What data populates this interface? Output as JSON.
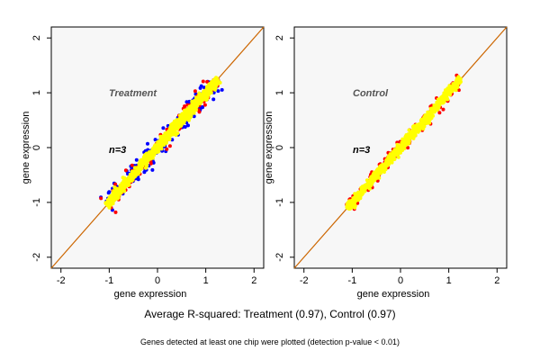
{
  "chart_data": [
    {
      "type": "scatter",
      "panel_label": "Treatment",
      "annotation": "n=3",
      "xlabel": "gene expression",
      "ylabel": "gene expression",
      "xlim": [
        -2.2,
        2.2
      ],
      "ylim": [
        -2.2,
        2.2
      ],
      "xticks": [
        -2,
        -1,
        0,
        1,
        2
      ],
      "yticks": [
        -2,
        -1,
        0,
        1,
        2
      ],
      "reference_line": "y = x",
      "point_colors": [
        "#0000ff",
        "#ff0000",
        "#ffff00"
      ],
      "cloud_extent": {
        "x": [
          -1.05,
          1.25
        ],
        "y": [
          -1.05,
          1.25
        ]
      },
      "spread_by_color": {
        "#0000ff": 0.28,
        "#ff0000": 0.2,
        "#ffff00": 0.12
      }
    },
    {
      "type": "scatter",
      "panel_label": "Control",
      "annotation": "n=3",
      "xlabel": "gene expression",
      "ylabel": "gene expression",
      "xlim": [
        -2.2,
        2.2
      ],
      "ylim": [
        -2.2,
        2.2
      ],
      "xticks": [
        -2,
        -1,
        0,
        1,
        2
      ],
      "yticks": [
        -2,
        -1,
        0,
        1,
        2
      ],
      "reference_line": "y = x",
      "point_colors": [
        "#ff0000",
        "#ffff00"
      ],
      "cloud_extent": {
        "x": [
          -1.1,
          1.25
        ],
        "y": [
          -1.1,
          1.25
        ]
      },
      "spread_by_color": {
        "#ff0000": 0.16,
        "#ffff00": 0.1
      }
    }
  ],
  "subtitle": "Average R-squared: Treatment (0.97), Control (0.97)",
  "footnote": "Genes detected at least one chip were plotted (detection p-value < 0.01)",
  "colors": {
    "reference_line": "#cc6600",
    "panel_bg": "#f7f7f7"
  }
}
